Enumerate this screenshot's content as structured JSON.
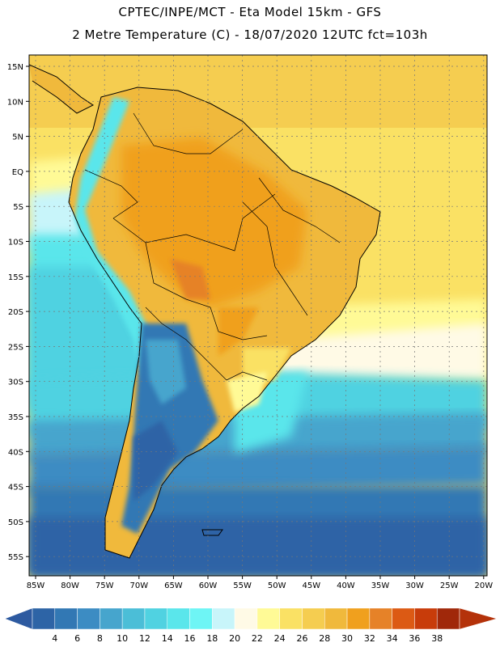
{
  "header": {
    "line1": "CPTEC/INPE/MCT -  Eta Model 15km - GFS",
    "line2": "2 Metre Temperature (C) - 18/07/2020 12UTC fct=103h"
  },
  "map": {
    "lat_ticks": [
      "15N",
      "10N",
      "5N",
      "EQ",
      "5S",
      "10S",
      "15S",
      "20S",
      "25S",
      "30S",
      "35S",
      "40S",
      "45S",
      "50S",
      "55S"
    ],
    "lon_ticks": [
      "85W",
      "80W",
      "75W",
      "70W",
      "65W",
      "60W",
      "55W",
      "50W",
      "45W",
      "40W",
      "35W",
      "30W",
      "25W",
      "20W"
    ]
  },
  "legend": {
    "values": [
      "4",
      "6",
      "8",
      "10",
      "12",
      "14",
      "16",
      "18",
      "20",
      "22",
      "24",
      "26",
      "28",
      "30",
      "32",
      "34",
      "36",
      "38"
    ],
    "colors": [
      "#2d64a6",
      "#3278b4",
      "#3c8cc3",
      "#46a5cd",
      "#4bbed7",
      "#50d2e1",
      "#5ae6eb",
      "#6ef5f5",
      "#c8f5fa",
      "#fffae6",
      "#fffa96",
      "#fae164",
      "#f5cd50",
      "#f0b93c",
      "#f0a01e",
      "#e68228",
      "#dc5a14",
      "#c83c0a",
      "#a0280a"
    ],
    "low_color": "#2d5aa0",
    "high_color": "#b4320a"
  }
}
